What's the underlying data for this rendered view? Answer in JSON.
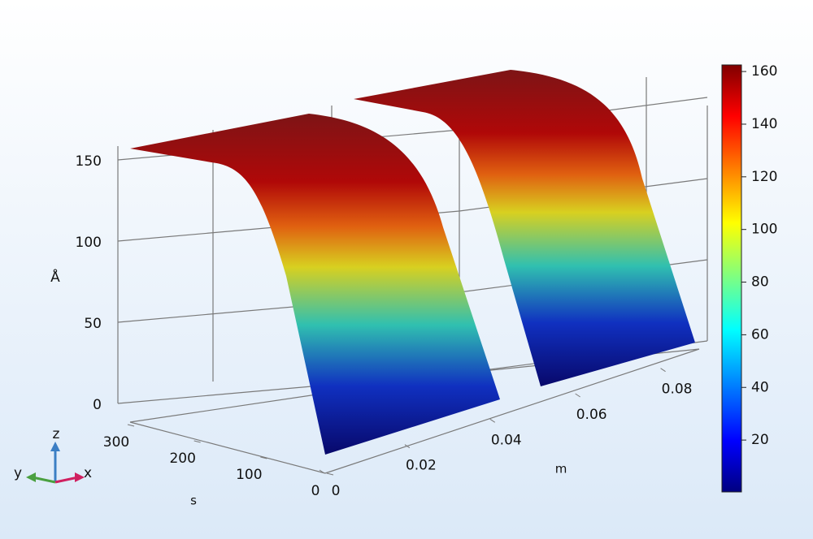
{
  "chart_data": {
    "type": "surface",
    "zlabel": "Å",
    "ylabel": "s",
    "xlabel": "m",
    "zlim": [
      0,
      160
    ],
    "zticks": [
      0,
      50,
      100,
      150
    ],
    "slim": [
      0,
      300
    ],
    "sticks": [
      0,
      100,
      200,
      300
    ],
    "mlim": [
      0,
      0.09
    ],
    "mticks": [
      0,
      0.02,
      0.04,
      0.06,
      0.08
    ],
    "colorbar": {
      "lim": [
        0.3,
        162.5
      ],
      "ticks": [
        20,
        40,
        60,
        80,
        100,
        120,
        140,
        160
      ]
    },
    "triad": [
      "z",
      "y",
      "x"
    ]
  }
}
